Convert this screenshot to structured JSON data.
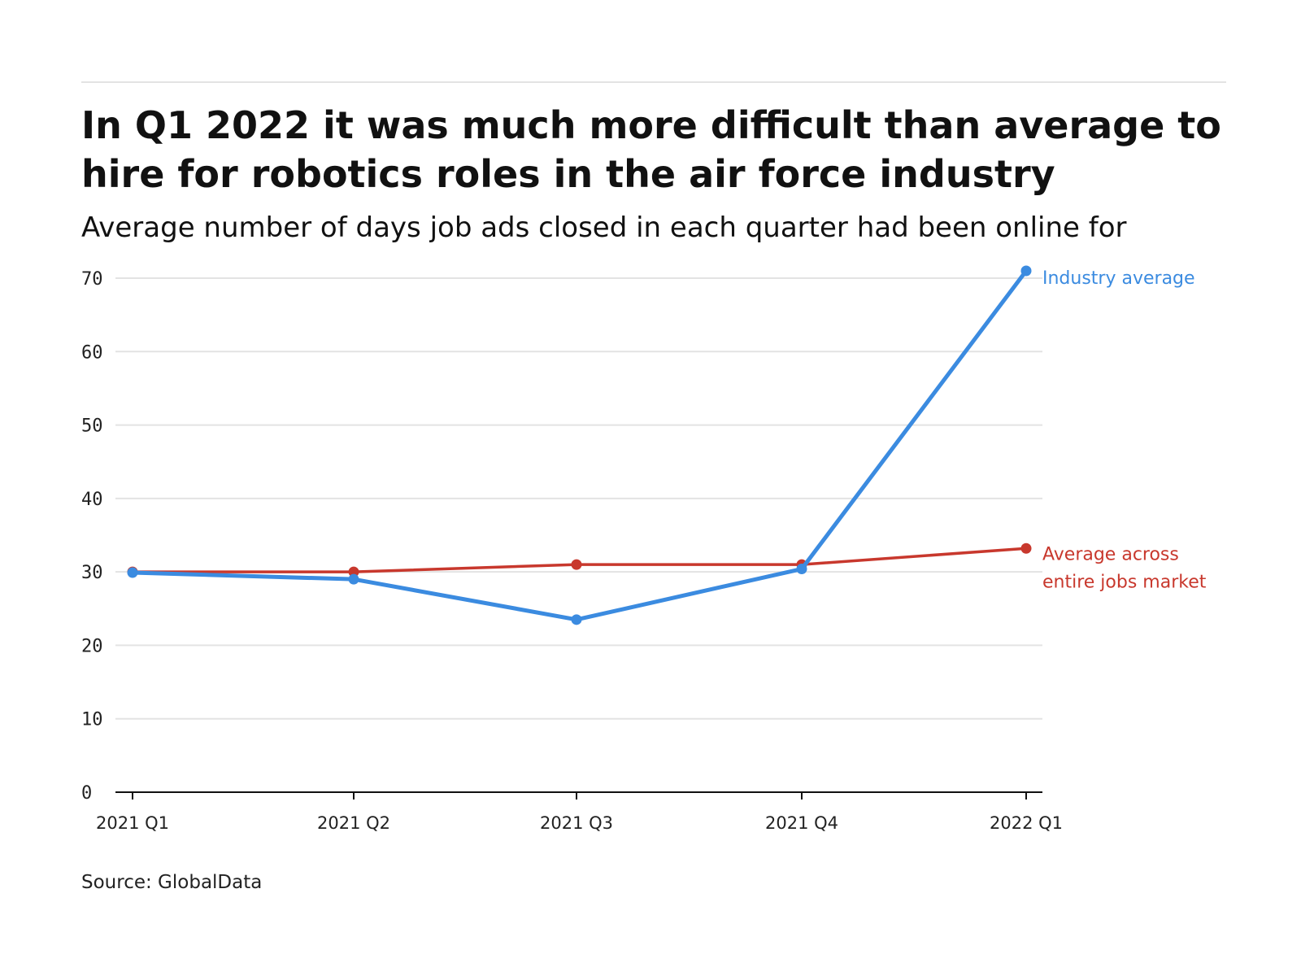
{
  "header": {
    "title": "In Q1 2022 it was much more difficult than average to hire for robotics roles in the air force industry",
    "subtitle": "Average number of days job ads closed in each quarter had been online for"
  },
  "footer": {
    "source": "Source: GlobalData"
  },
  "colors": {
    "industry": "#3b8be0",
    "market": "#c8382d",
    "grid": "#e3e3e3",
    "axis": "#111111"
  },
  "chart_data": {
    "type": "line",
    "title": "In Q1 2022 it was much more difficult than average to hire for robotics roles in the air force industry",
    "subtitle": "Average number of days job ads closed in each quarter had been online for",
    "categories": [
      "2021 Q1",
      "2021 Q2",
      "2021 Q3",
      "2021 Q4",
      "2022 Q1"
    ],
    "series": [
      {
        "key": "industry",
        "name": "Industry average",
        "values": [
          29.9,
          29.0,
          23.5,
          30.4,
          71.0
        ]
      },
      {
        "key": "market",
        "name": "Average across entire jobs market",
        "label_lines": [
          "Average across",
          "entire jobs market"
        ],
        "values": [
          30.0,
          30.0,
          31.0,
          31.0,
          33.2
        ]
      }
    ],
    "yticks": [
      0,
      10,
      20,
      30,
      40,
      50,
      60,
      70
    ],
    "ylim": [
      0,
      70
    ],
    "grid": true,
    "legend": "direct labels at line ends"
  }
}
